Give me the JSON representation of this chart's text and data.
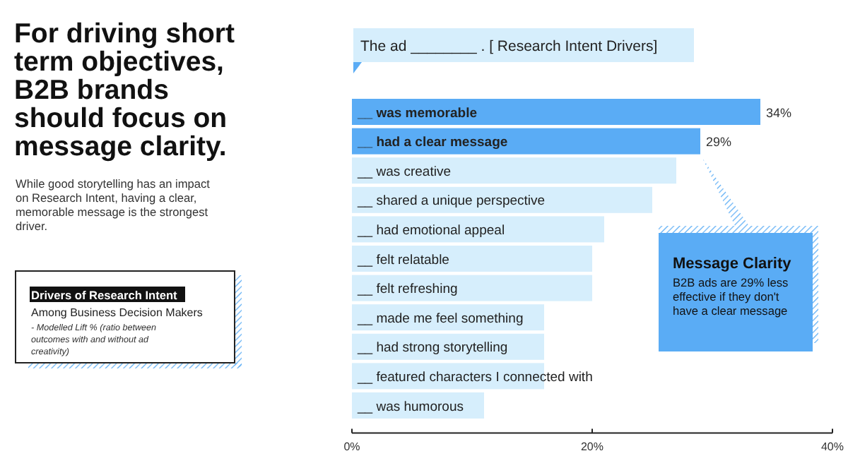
{
  "chart_data": {
    "type": "bar",
    "orientation": "horizontal",
    "title": "The ad ________ .  [ Research Intent Drivers]",
    "categories": [
      "__ was memorable",
      "__ had a clear message",
      "__ was creative",
      "__ shared a unique perspective",
      "__ had emotional appeal",
      "__ felt relatable",
      "__ felt refreshing",
      "__ made me feel something",
      "__ had strong storytelling",
      "__ featured characters I connected with",
      "__ was humorous"
    ],
    "values": [
      34,
      29,
      27,
      25,
      21,
      20,
      20,
      16,
      16,
      16,
      11
    ],
    "colors": [
      "#5aacf5",
      "#5aacf5",
      "#d6eefc",
      "#d6eefc",
      "#d6eefc",
      "#d6eefc",
      "#d6eefc",
      "#d6eefc",
      "#d6eefc",
      "#d6eefc",
      "#d6eefc"
    ],
    "value_labels": [
      "34%",
      "29%",
      null,
      null,
      null,
      null,
      null,
      null,
      null,
      null,
      null
    ],
    "xlim": [
      0,
      40
    ],
    "xticks": [
      {
        "value": 0,
        "label": "0%"
      },
      {
        "value": 20,
        "label": "20%"
      },
      {
        "value": 40,
        "label": "40%"
      }
    ],
    "annotations": [
      "For driving short term objectives, B2B brands should focus on message clarity.",
      "While good storytelling has an impact on Research Intent, having a clear, memorable message is the strongest driver.",
      "Drivers of Research Intent",
      "Among Business Decision Makers",
      "- Modelled Lift % (ratio between outcomes with and without ad creativity)",
      "Message Clarity",
      "B2B ads are 29% less effective if they don't have a clear message"
    ]
  }
}
